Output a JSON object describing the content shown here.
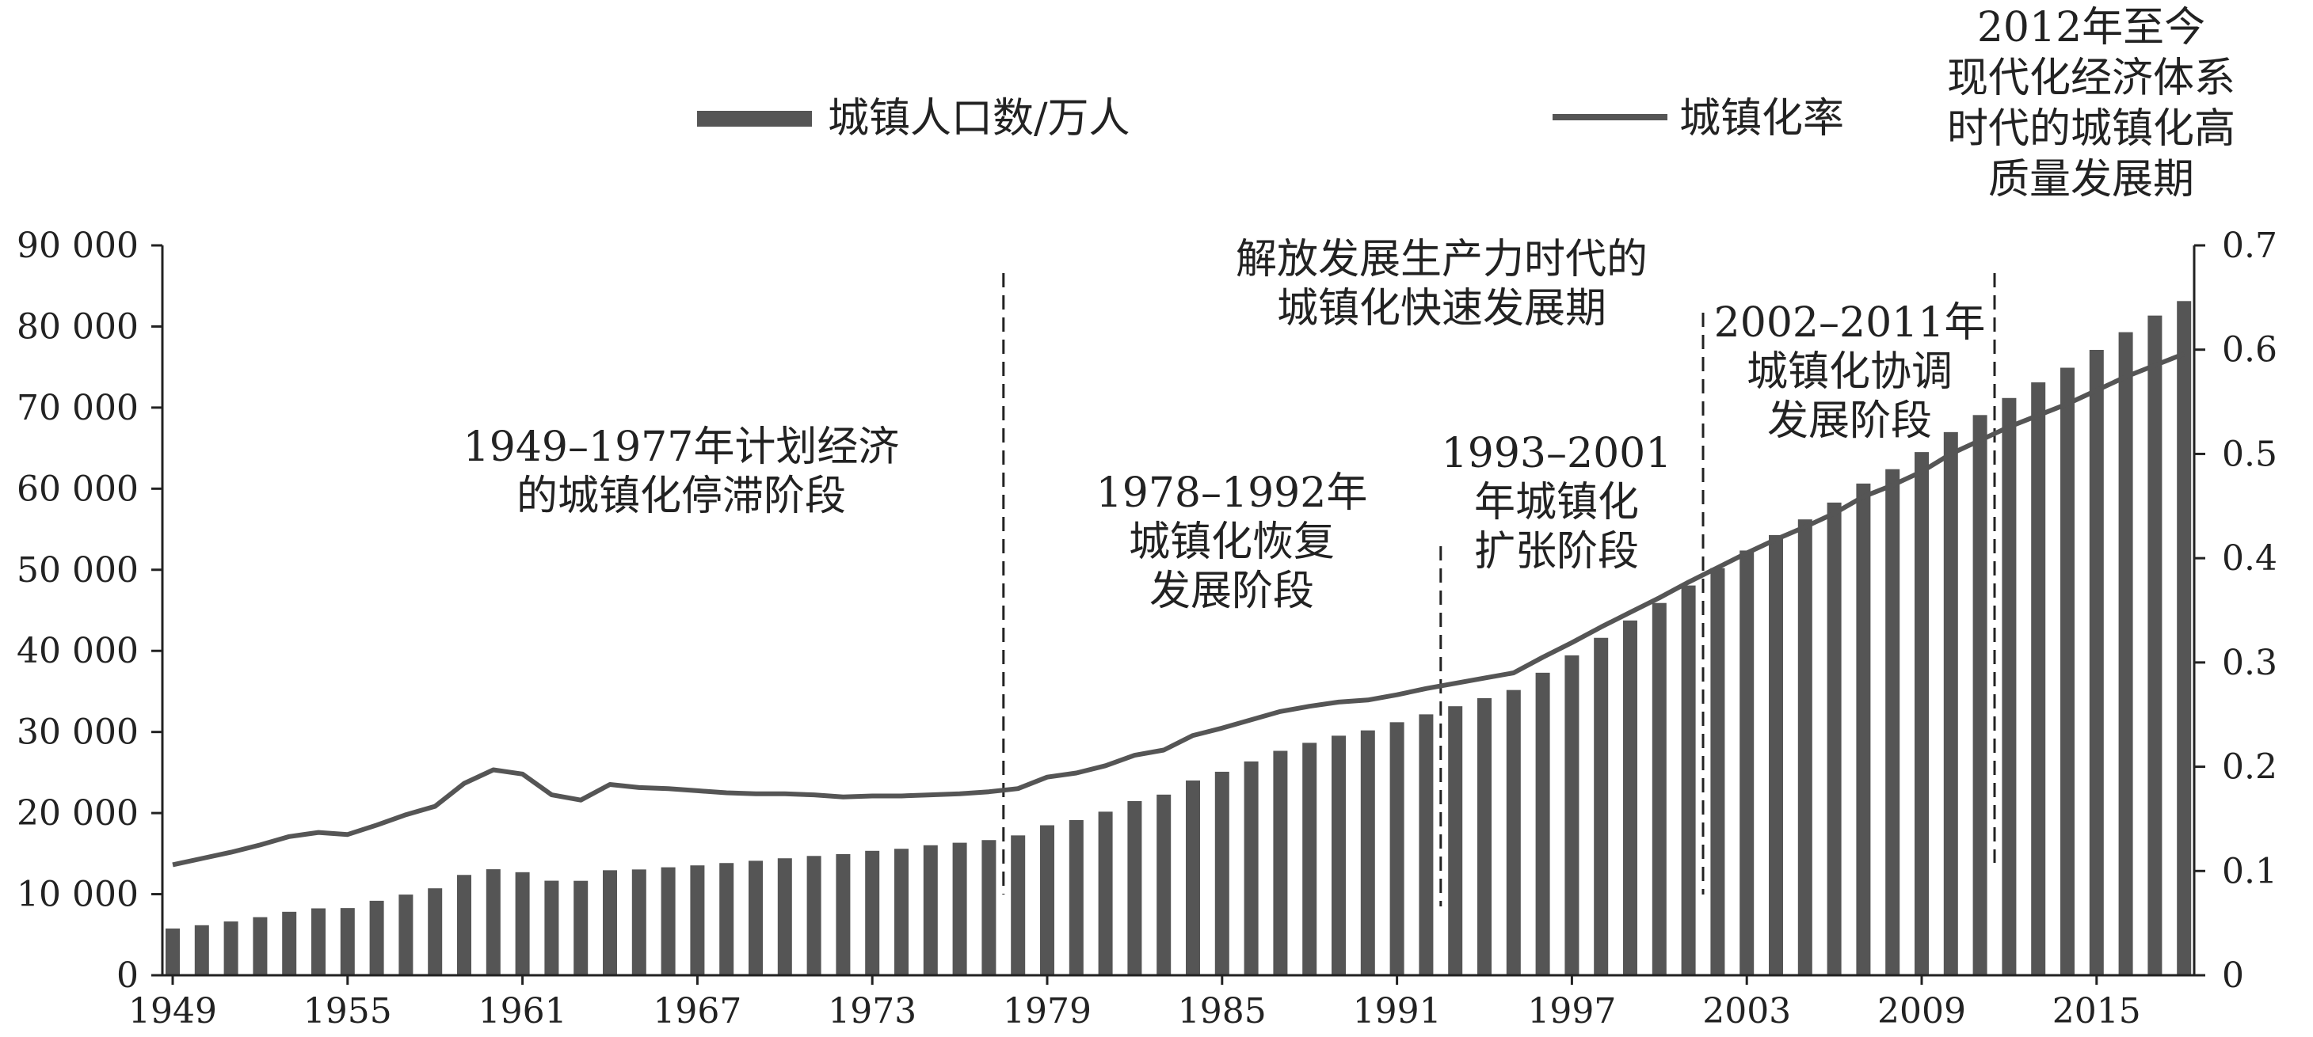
{
  "chart_data": {
    "type": "bar+line",
    "legend": {
      "bar_label": "城镇人口数/万人",
      "line_label": "城镇化率",
      "placement": "top"
    },
    "left_axis": {
      "ylim": [
        0,
        90000
      ],
      "ticks": [
        0,
        10000,
        20000,
        30000,
        40000,
        50000,
        60000,
        70000,
        80000,
        90000
      ],
      "tick_labels": [
        "0",
        "10 000",
        "20 000",
        "30 000",
        "40 000",
        "50 000",
        "60 000",
        "70 000",
        "80 000",
        "90 000"
      ]
    },
    "right_axis": {
      "ylim": [
        0,
        0.7
      ],
      "ticks": [
        0,
        0.1,
        0.2,
        0.3,
        0.4,
        0.5,
        0.6,
        0.7
      ],
      "tick_labels": [
        "0",
        "0.1",
        "0.2",
        "0.3",
        "0.4",
        "0.5",
        "0.6",
        "0.7"
      ]
    },
    "x_axis": {
      "tick_labels": [
        "1949",
        "1955",
        "1961",
        "1967",
        "1973",
        "1979",
        "1985",
        "1991",
        "1997",
        "2003",
        "2009",
        "2015"
      ]
    },
    "years": [
      1949,
      1950,
      1951,
      1952,
      1953,
      1954,
      1955,
      1956,
      1957,
      1958,
      1959,
      1960,
      1961,
      1962,
      1963,
      1964,
      1965,
      1966,
      1967,
      1968,
      1969,
      1970,
      1971,
      1972,
      1973,
      1974,
      1975,
      1976,
      1977,
      1978,
      1979,
      1980,
      1981,
      1982,
      1983,
      1984,
      1985,
      1986,
      1987,
      1988,
      1989,
      1990,
      1991,
      1992,
      1993,
      1994,
      1995,
      1996,
      1997,
      1998,
      1999,
      2000,
      2001,
      2002,
      2003,
      2004,
      2005,
      2006,
      2007,
      2008,
      2009,
      2010,
      2011,
      2012,
      2013,
      2014,
      2015,
      2016,
      2017,
      2018
    ],
    "series": [
      {
        "name": "城镇人口数/万人",
        "kind": "bar",
        "axis": "left",
        "values": [
          5765,
          6169,
          6632,
          7163,
          7826,
          8249,
          8285,
          9185,
          9949,
          10721,
          12371,
          13073,
          12707,
          11659,
          11646,
          12950,
          13045,
          13313,
          13548,
          13838,
          14117,
          14424,
          14711,
          14935,
          15345,
          15595,
          16030,
          16341,
          16669,
          17245,
          18495,
          19140,
          20171,
          21480,
          22274,
          24017,
          25094,
          26366,
          27674,
          28661,
          29540,
          30195,
          31203,
          32175,
          33173,
          34169,
          35174,
          37304,
          39449,
          41608,
          43748,
          45906,
          48064,
          50212,
          52376,
          54283,
          56212,
          58288,
          60633,
          62403,
          64512,
          66978,
          69079,
          71182,
          73111,
          74916,
          77116,
          79298,
          81347,
          83137
        ]
      },
      {
        "name": "城镇化率",
        "kind": "line",
        "axis": "right",
        "values": [
          0.106,
          0.112,
          0.118,
          0.125,
          0.133,
          0.137,
          0.135,
          0.144,
          0.154,
          0.162,
          0.184,
          0.197,
          0.193,
          0.173,
          0.168,
          0.183,
          0.18,
          0.179,
          0.177,
          0.175,
          0.174,
          0.174,
          0.173,
          0.171,
          0.172,
          0.172,
          0.173,
          0.174,
          0.176,
          0.179,
          0.19,
          0.194,
          0.201,
          0.211,
          0.216,
          0.23,
          0.237,
          0.245,
          0.253,
          0.258,
          0.262,
          0.264,
          0.269,
          0.275,
          0.28,
          0.285,
          0.29,
          0.305,
          0.319,
          0.334,
          0.348,
          0.362,
          0.377,
          0.391,
          0.405,
          0.418,
          0.43,
          0.443,
          0.459,
          0.47,
          0.483,
          0.5,
          0.513,
          0.526,
          0.537,
          0.548,
          0.561,
          0.574,
          0.585,
          0.596
        ]
      }
    ],
    "dividers": [
      1977.5,
      1992.5,
      2001.5,
      2011.5
    ],
    "annotations": [
      {
        "id": "stage1",
        "lines": [
          "1949–1977年计划经济",
          "的城镇化停滞阶段"
        ]
      },
      {
        "id": "stage2",
        "lines": [
          "1978–1992年",
          "城镇化恢复",
          "发展阶段"
        ]
      },
      {
        "id": "stage2b",
        "lines": [
          "解放发展生产力时代的",
          "城镇化快速发展期"
        ]
      },
      {
        "id": "stage3",
        "lines": [
          "1993–2001",
          "年城镇化",
          "扩张阶段"
        ]
      },
      {
        "id": "stage4",
        "lines": [
          "2002–2011年",
          "城镇化协调",
          "发展阶段"
        ]
      },
      {
        "id": "stage5",
        "lines": [
          "2012年至今",
          "现代化经济体系",
          "时代的城镇化高",
          "质量发展期"
        ]
      }
    ],
    "grid": false
  }
}
